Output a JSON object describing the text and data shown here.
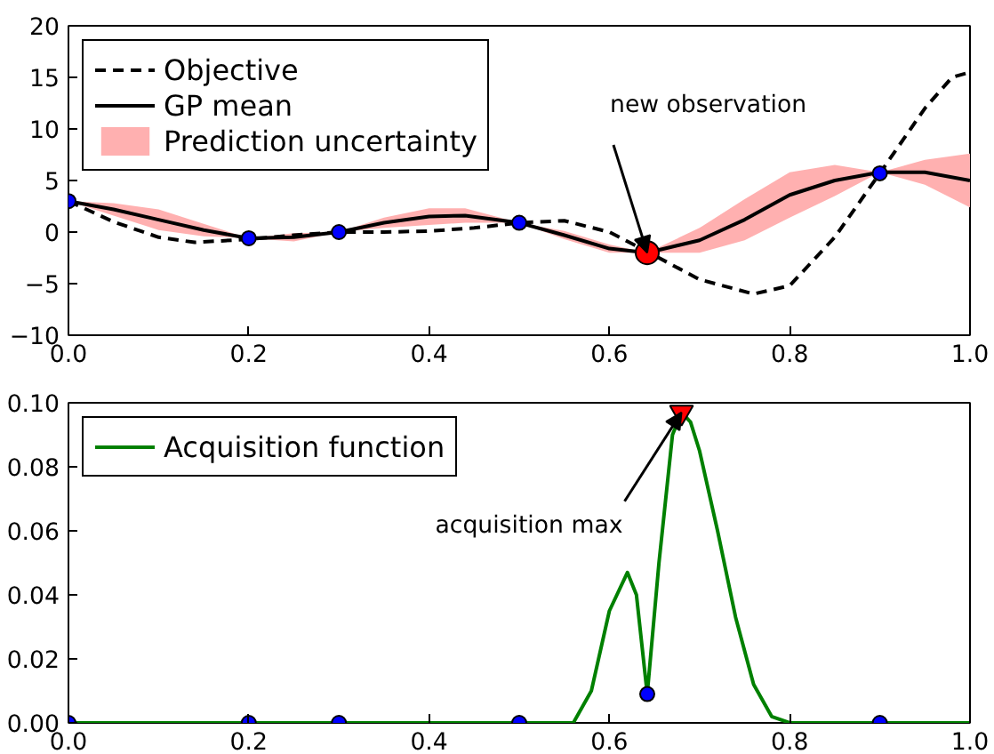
{
  "chart_data": [
    {
      "type": "line",
      "xlim": [
        0,
        1
      ],
      "ylim": [
        -10,
        20
      ],
      "xticks": [
        {
          "value": 0,
          "label": "0.0"
        },
        {
          "value": 0.2,
          "label": "0.2"
        },
        {
          "value": 0.4,
          "label": "0.4"
        },
        {
          "value": 0.6,
          "label": "0.6"
        },
        {
          "value": 0.8,
          "label": "0.8"
        },
        {
          "value": 1,
          "label": "1.0"
        }
      ],
      "yticks": [
        {
          "value": -10,
          "label": "−10"
        },
        {
          "value": -5,
          "label": "−5"
        },
        0,
        5,
        10,
        15,
        20
      ],
      "grid": false,
      "legend": "top left",
      "annotations": [
        {
          "text": "new observation",
          "x": 0.642,
          "y": -2
        }
      ],
      "series": [
        {
          "name": "Objective",
          "color": "#000000",
          "line_style": "dashed",
          "x": [
            0,
            0.05,
            0.1,
            0.14,
            0.2,
            0.25,
            0.3,
            0.35,
            0.4,
            0.45,
            0.5,
            0.55,
            0.6,
            0.64,
            0.7,
            0.76,
            0.8,
            0.85,
            0.9,
            0.95,
            0.98,
            1.0
          ],
          "values": [
            3,
            1.0,
            -0.5,
            -1.0,
            -0.7,
            -0.3,
            0,
            0,
            0.1,
            0.4,
            0.9,
            1.1,
            0.0,
            -1.8,
            -4.6,
            -6.0,
            -5.2,
            -0.5,
            5.7,
            12.0,
            15.0,
            15.5
          ]
        },
        {
          "name": "GP mean",
          "color": "#000000",
          "line_style": "solid",
          "x": [
            0,
            0.05,
            0.1,
            0.15,
            0.2,
            0.25,
            0.3,
            0.35,
            0.4,
            0.44,
            0.5,
            0.55,
            0.6,
            0.642,
            0.7,
            0.75,
            0.8,
            0.85,
            0.9,
            0.95,
            1.0
          ],
          "values": [
            3,
            2.2,
            1.2,
            0.2,
            -0.6,
            -0.5,
            0,
            0.9,
            1.5,
            1.6,
            0.9,
            -0.3,
            -1.6,
            -2,
            -0.8,
            1.2,
            3.6,
            5.0,
            5.8,
            5.8,
            5.0
          ],
          "lower": [
            3,
            1.6,
            0.2,
            -0.4,
            -0.6,
            -0.9,
            0,
            0.4,
            0.7,
            0.9,
            0.9,
            -0.7,
            -2.0,
            -2,
            -2.0,
            -0.8,
            1.4,
            3.5,
            5.8,
            4.6,
            2.4
          ],
          "upper": [
            3,
            2.8,
            2.2,
            0.8,
            -0.6,
            -0.1,
            0,
            1.4,
            2.3,
            2.3,
            0.9,
            0.1,
            -1.2,
            -2,
            0.4,
            3.2,
            5.8,
            6.5,
            5.8,
            7.0,
            7.6
          ]
        },
        {
          "type": "area",
          "name": "Prediction uncertainty",
          "color": "#ffb0b0"
        },
        {
          "type": "scatter",
          "color": "#0000ff",
          "marker": "circle",
          "x": [
            0,
            0.2,
            0.3,
            0.5,
            0.9
          ],
          "values": [
            3,
            -0.6,
            0,
            0.9,
            5.7
          ]
        },
        {
          "type": "scatter",
          "color": "#ff0000",
          "marker": "circle",
          "x": [
            0.642
          ],
          "values": [
            -2
          ]
        }
      ]
    },
    {
      "type": "line",
      "xlim": [
        0,
        1
      ],
      "ylim": [
        0,
        0.1
      ],
      "xticks": [
        {
          "value": 0,
          "label": "0.0"
        },
        {
          "value": 0.2,
          "label": "0.2"
        },
        {
          "value": 0.4,
          "label": "0.4"
        },
        {
          "value": 0.6,
          "label": "0.6"
        },
        {
          "value": 0.8,
          "label": "0.8"
        },
        {
          "value": 1,
          "label": "1.0"
        }
      ],
      "yticks": [
        {
          "value": 0,
          "label": "0.00"
        },
        {
          "value": 0.02,
          "label": "0.02"
        },
        {
          "value": 0.04,
          "label": "0.04"
        },
        {
          "value": 0.06,
          "label": "0.06"
        },
        {
          "value": 0.08,
          "label": "0.08"
        },
        {
          "value": 0.1,
          "label": "0.10"
        }
      ],
      "grid": false,
      "legend": "top left",
      "annotations": [
        {
          "text": "acquisition max",
          "x": 0.68,
          "y": 0.097
        }
      ],
      "series": [
        {
          "name": "Acquisition function",
          "color": "#008000",
          "line_style": "solid",
          "x": [
            0,
            0.5,
            0.56,
            0.58,
            0.6,
            0.62,
            0.63,
            0.642,
            0.655,
            0.67,
            0.68,
            0.69,
            0.7,
            0.72,
            0.74,
            0.76,
            0.78,
            0.8,
            1.0
          ],
          "values": [
            0,
            0,
            0,
            0.01,
            0.035,
            0.047,
            0.04,
            0.009,
            0.05,
            0.09,
            0.097,
            0.094,
            0.085,
            0.06,
            0.033,
            0.012,
            0.002,
            0,
            0
          ]
        },
        {
          "type": "scatter",
          "color": "#0000ff",
          "marker": "circle",
          "x": [
            0,
            0.2,
            0.3,
            0.5,
            0.642,
            0.9
          ],
          "values": [
            0,
            0,
            0,
            0,
            0.009,
            0
          ]
        },
        {
          "type": "scatter",
          "color": "#ff0000",
          "marker": "triangle",
          "x": [
            0.68
          ],
          "values": [
            0.097
          ]
        }
      ]
    }
  ]
}
